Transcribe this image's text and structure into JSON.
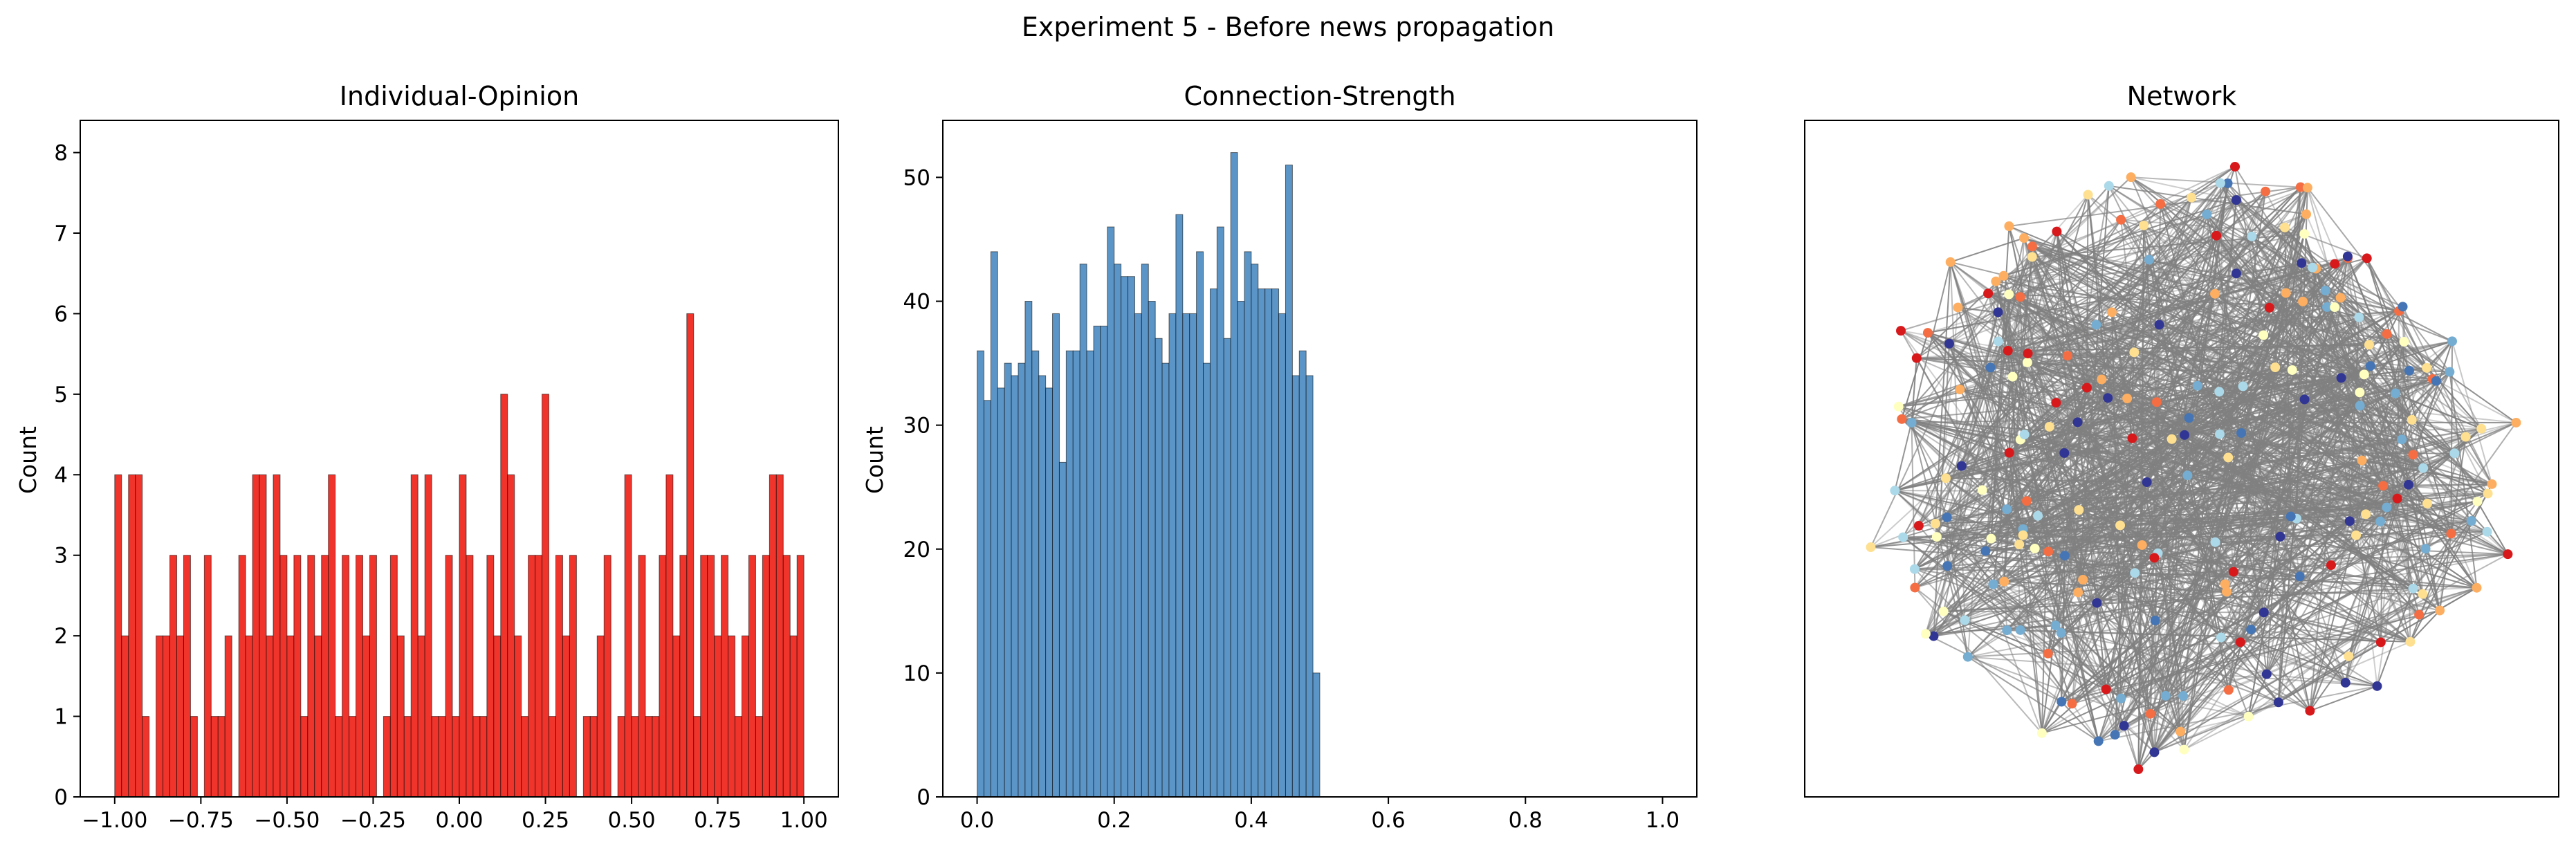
{
  "figure": {
    "suptitle": "Experiment 5 - Before news propagation"
  },
  "chart_data": [
    {
      "type": "bar",
      "title": "Individual-Opinion",
      "xlabel": "",
      "ylabel": "Count",
      "xlim": [
        -1.1,
        1.1
      ],
      "ylim": [
        0,
        8.4
      ],
      "xticks": [
        -1.0,
        -0.75,
        -0.5,
        -0.25,
        0.0,
        0.25,
        0.5,
        0.75,
        1.0
      ],
      "xtick_labels": [
        "−1.00",
        "−0.75",
        "−0.50",
        "−0.25",
        "0.00",
        "0.25",
        "0.50",
        "0.75",
        "1.00"
      ],
      "yticks": [
        0,
        1,
        2,
        3,
        4,
        5,
        6,
        7,
        8
      ],
      "ytick_labels": [
        "0",
        "1",
        "2",
        "3",
        "4",
        "5",
        "6",
        "7",
        "8"
      ],
      "grid": false,
      "color": "#f0332b",
      "bin_start": -1.0,
      "bin_width": 0.02,
      "values": [
        4,
        2,
        4,
        4,
        1,
        0,
        2,
        2,
        3,
        2,
        3,
        1,
        0,
        3,
        1,
        1,
        2,
        0,
        3,
        2,
        4,
        4,
        2,
        4,
        3,
        2,
        3,
        1,
        3,
        2,
        3,
        4,
        1,
        3,
        1,
        3,
        2,
        3,
        0,
        1,
        3,
        2,
        1,
        4,
        2,
        4,
        1,
        1,
        3,
        1,
        4,
        3,
        1,
        1,
        3,
        2,
        5,
        4,
        2,
        1,
        3,
        3,
        5,
        1,
        3,
        2,
        3,
        0,
        1,
        1,
        2,
        3,
        0,
        1,
        4,
        1,
        3,
        1,
        1,
        3,
        4,
        2,
        3,
        6,
        1,
        3,
        3,
        2,
        3,
        2,
        1,
        2,
        3,
        1,
        3,
        4,
        4,
        3,
        2,
        3
      ]
    },
    {
      "type": "bar",
      "title": "Connection-Strength",
      "xlabel": "",
      "ylabel": "Count",
      "xlim": [
        -0.05,
        1.05
      ],
      "ylim": [
        0,
        54.6
      ],
      "xticks": [
        0.0,
        0.2,
        0.4,
        0.6,
        0.8,
        1.0
      ],
      "xtick_labels": [
        "0.0",
        "0.2",
        "0.4",
        "0.6",
        "0.8",
        "1.0"
      ],
      "yticks": [
        0,
        10,
        20,
        30,
        40,
        50
      ],
      "ytick_labels": [
        "0",
        "10",
        "20",
        "30",
        "40",
        "50"
      ],
      "grid": false,
      "color": "#5b95c7",
      "bin_start": 0.0,
      "bin_width": 0.01,
      "values": [
        36,
        32,
        44,
        33,
        35,
        34,
        35,
        40,
        36,
        34,
        33,
        39,
        27,
        36,
        36,
        43,
        36,
        38,
        38,
        46,
        43,
        42,
        42,
        39,
        43,
        40,
        37,
        35,
        39,
        47,
        39,
        39,
        44,
        35,
        41,
        46,
        37,
        52,
        40,
        44,
        43,
        41,
        41,
        41,
        39,
        51,
        34,
        36,
        34,
        10
      ]
    },
    {
      "type": "network",
      "title": "Network",
      "node_count": 230,
      "edge_count": 1400,
      "edge_color": "#808080",
      "node_colors": [
        "#d7191c",
        "#f46d43",
        "#fdae61",
        "#fee090",
        "#ffffbf",
        "#abd9e9",
        "#74add1",
        "#4575b4",
        "#313695"
      ],
      "axis_ticks": false
    }
  ]
}
